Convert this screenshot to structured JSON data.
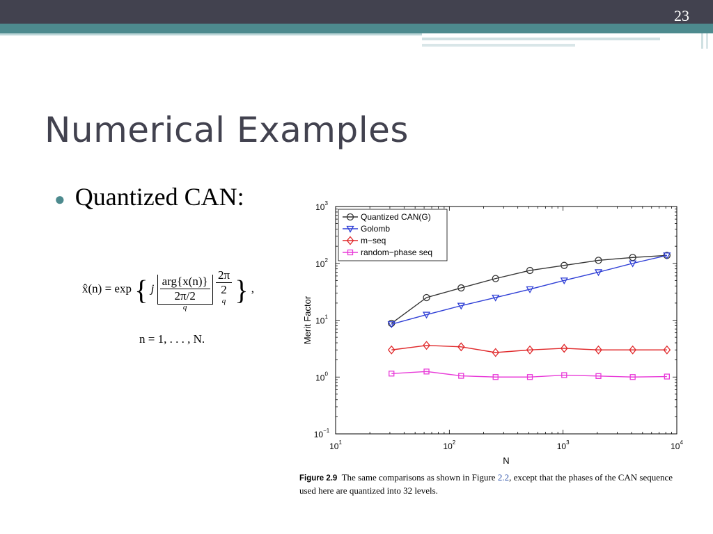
{
  "slide": {
    "number": "23",
    "title": "Numerical Examples",
    "bullet": "Quantized CAN:",
    "formula": {
      "lhs": "x̂(n) = exp",
      "j": "j",
      "num1": "arg{x(n)}",
      "den1": "2π/2",
      "den1_exp": "q",
      "num2": "2π",
      "den2": "2",
      "den2_exp": "q",
      "trail": ",",
      "range": "n = 1, . . . , N."
    }
  },
  "caption": {
    "label": "Figure 2.9",
    "text_before": "The same comparisons as shown in Figure ",
    "ref": "2.2",
    "text_after": ", except that the phases of the CAN sequence used here are quantized into 32 levels."
  },
  "colors": {
    "header_dark": "#42424f",
    "header_teal": "#4d8a8e",
    "series": [
      "#333333",
      "#2f3fd6",
      "#e0282a",
      "#e83ad8"
    ]
  },
  "chart_data": {
    "type": "line",
    "xlabel": "N",
    "ylabel": "Merit Factor",
    "xscale": "log",
    "yscale": "log",
    "xlim": [
      10,
      10000
    ],
    "ylim": [
      0.1,
      1000
    ],
    "xticks": [
      {
        "base": "10",
        "exp": "1",
        "value": 10
      },
      {
        "base": "10",
        "exp": "2",
        "value": 100
      },
      {
        "base": "10",
        "exp": "3",
        "value": 1000
      },
      {
        "base": "10",
        "exp": "4",
        "value": 10000
      }
    ],
    "yticks": [
      {
        "base": "10",
        "exp": "−1",
        "value": 0.1
      },
      {
        "base": "10",
        "exp": "0",
        "value": 1
      },
      {
        "base": "10",
        "exp": "1",
        "value": 10
      },
      {
        "base": "10",
        "exp": "2",
        "value": 100
      },
      {
        "base": "10",
        "exp": "3",
        "value": 1000
      }
    ],
    "legend_position": "top-left",
    "x": [
      31,
      63,
      127,
      255,
      511,
      1023,
      2047,
      4095,
      8191
    ],
    "series": [
      {
        "name": "Quantized CAN(G)",
        "marker": "circle",
        "color": "#333333",
        "values": [
          8.8,
          25,
          37,
          54,
          75,
          92,
          113,
          127,
          138
        ]
      },
      {
        "name": "Golomb",
        "marker": "triangle-down",
        "color": "#2f3fd6",
        "values": [
          8.5,
          12.5,
          18,
          25,
          35,
          50,
          70,
          100,
          138
        ]
      },
      {
        "name": "m−seq",
        "marker": "diamond",
        "color": "#e0282a",
        "values": [
          3.0,
          3.6,
          3.4,
          2.7,
          3.0,
          3.2,
          3.0,
          3.0,
          3.0
        ]
      },
      {
        "name": "random−phase seq",
        "marker": "square",
        "color": "#e83ad8",
        "values": [
          1.15,
          1.25,
          1.05,
          1.0,
          1.0,
          1.08,
          1.04,
          1.0,
          1.02
        ]
      }
    ]
  }
}
